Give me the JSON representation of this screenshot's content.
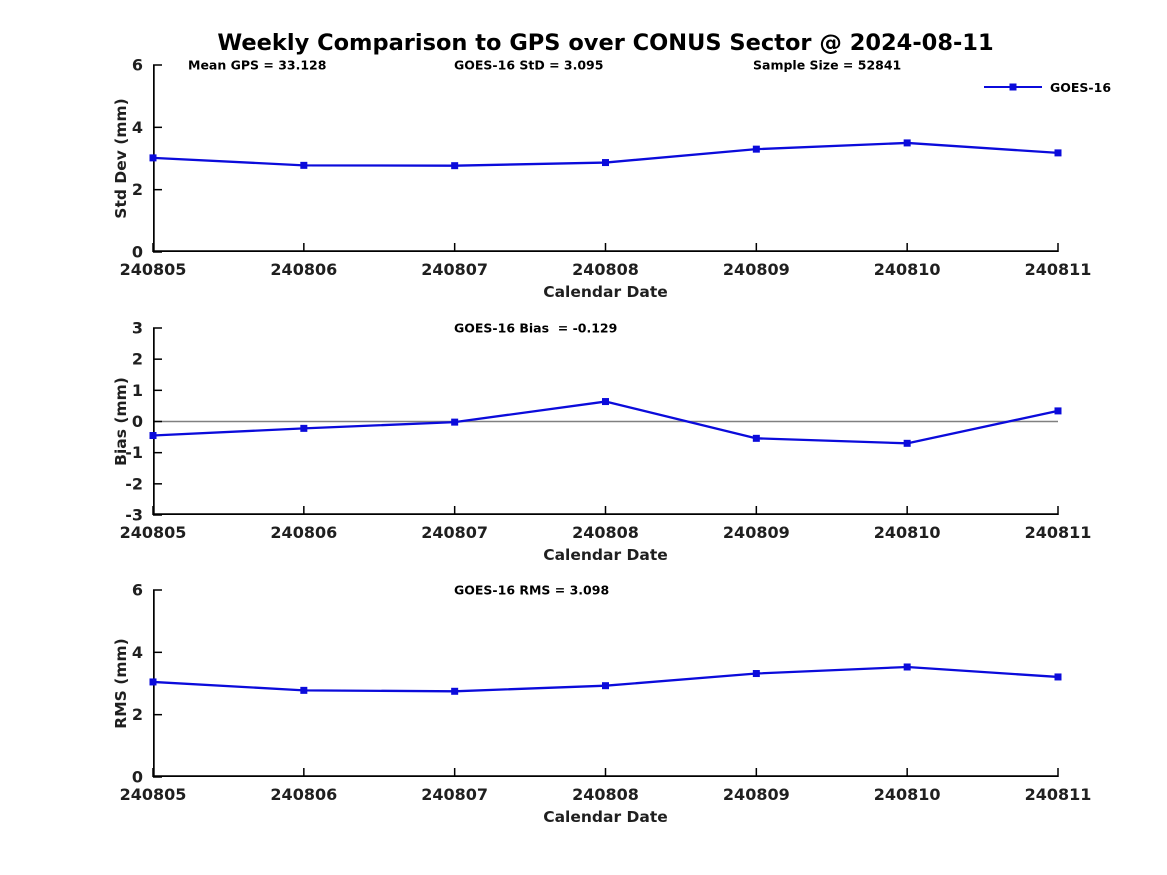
{
  "title": "Weekly Comparison to GPS over CONUS Sector @ 2024-08-11",
  "accent_color": "#0b0bdb",
  "axis_color": "#000000",
  "zero_line_color": "#808080",
  "legend": {
    "label": "GOES-16",
    "color": "#0b0bdb"
  },
  "xlabel": "Calendar Date",
  "x_ticks": [
    "240805",
    "240806",
    "240807",
    "240808",
    "240809",
    "240810",
    "240811"
  ],
  "chart_data": [
    {
      "type": "line",
      "title": "",
      "ylabel": "Std Dev (mm)",
      "xlabel": "Calendar Date",
      "ylim": [
        0,
        6
      ],
      "yticks": [
        0,
        2,
        4,
        6
      ],
      "categories": [
        "240805",
        "240806",
        "240807",
        "240808",
        "240809",
        "240810",
        "240811"
      ],
      "series": [
        {
          "name": "GOES-16",
          "values": [
            3.02,
            2.78,
            2.77,
            2.87,
            3.3,
            3.5,
            3.18
          ]
        }
      ],
      "annotations": [
        "Mean GPS = 33.128",
        "GOES-16 StD = 3.095",
        "Sample Size = 52841"
      ],
      "legend_entries": [
        "GOES-16"
      ],
      "zero_line": false,
      "grid": false
    },
    {
      "type": "line",
      "title": "",
      "ylabel": "Bias (mm)",
      "xlabel": "Calendar Date",
      "ylim": [
        -3,
        3
      ],
      "yticks": [
        -3,
        -2,
        -1,
        0,
        1,
        2,
        3
      ],
      "categories": [
        "240805",
        "240806",
        "240807",
        "240808",
        "240809",
        "240810",
        "240811"
      ],
      "series": [
        {
          "name": "GOES-16",
          "values": [
            -0.45,
            -0.22,
            -0.02,
            0.64,
            -0.54,
            -0.7,
            0.34
          ]
        }
      ],
      "annotations": [
        "GOES-16 Bias  = -0.129"
      ],
      "legend_entries": [],
      "zero_line": true,
      "grid": false
    },
    {
      "type": "line",
      "title": "",
      "ylabel": "RMS (mm)",
      "xlabel": "Calendar Date",
      "ylim": [
        0,
        6
      ],
      "yticks": [
        0,
        2,
        4,
        6
      ],
      "categories": [
        "240805",
        "240806",
        "240807",
        "240808",
        "240809",
        "240810",
        "240811"
      ],
      "series": [
        {
          "name": "GOES-16",
          "values": [
            3.05,
            2.78,
            2.75,
            2.93,
            3.32,
            3.53,
            3.21
          ]
        }
      ],
      "annotations": [
        "GOES-16 RMS = 3.098"
      ],
      "legend_entries": [],
      "zero_line": false,
      "grid": false
    }
  ]
}
